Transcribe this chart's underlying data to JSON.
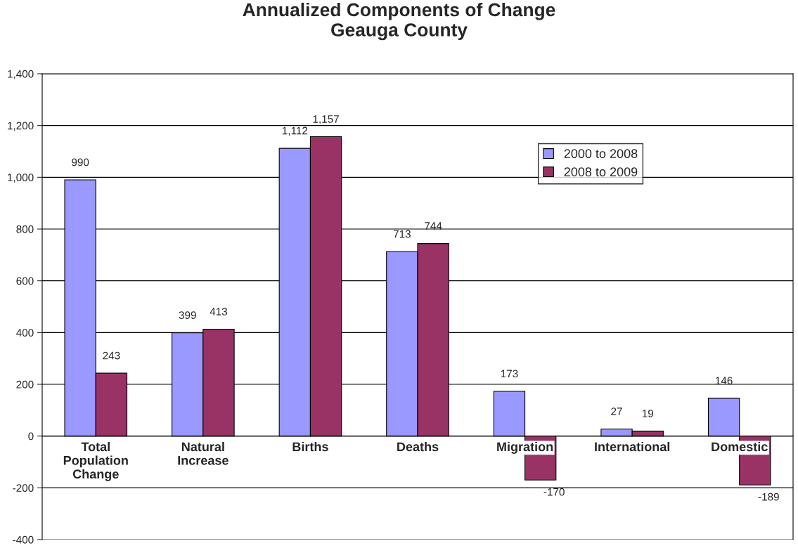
{
  "chart_data": {
    "type": "bar",
    "title": "Annualized Components of Change\nGeauga County",
    "categories": [
      "Total\nPopulation\nChange",
      "Natural\nIncrease",
      "Births",
      "Deaths",
      "Migration",
      "International",
      "Domestic"
    ],
    "series": [
      {
        "name": "2000 to 2008",
        "color": "#9999ff",
        "values": [
          990,
          399,
          1112,
          713,
          173,
          27,
          146
        ],
        "value_labels": [
          "990",
          "399",
          "1,112",
          "713",
          "173",
          "27",
          "146"
        ]
      },
      {
        "name": "2008 to 2009",
        "color": "#993366",
        "values": [
          243,
          413,
          1157,
          744,
          -170,
          19,
          -189
        ],
        "value_labels": [
          "243",
          "413",
          "1,157",
          "744",
          "-170",
          "19",
          "-189"
        ]
      }
    ],
    "ylim": [
      -400,
      1400
    ],
    "yticks": [
      {
        "value": -400,
        "label": "-400"
      },
      {
        "value": -200,
        "label": "-200"
      },
      0,
      200,
      400,
      600,
      800,
      {
        "value": 1000,
        "label": "1,000"
      },
      {
        "value": 1200,
        "label": "1,200"
      },
      {
        "value": 1400,
        "label": "1,400"
      }
    ],
    "grid": "y",
    "legend": "top right"
  }
}
